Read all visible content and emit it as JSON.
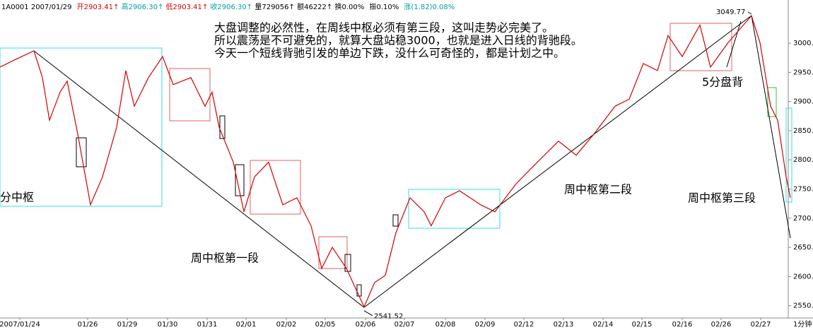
{
  "header": [
    "1A0001 2007/01/29",
    "开2903.41↑",
    "高2906.30↑",
    "低2903.41↑",
    "收2906.30↑",
    "量729056↑",
    "额46222↑",
    "换0.00%",
    "振0.10%",
    "涨(1.82)0.08%"
  ],
  "notes": [
    "大盘调整的必然性，在周线中枢必须有第三段，这叫走势必完美了。",
    "所以震荡是不可避免的，就算大盘站稳3000，也就是进入日线的背驰段。",
    "今天一个短线背驰引发的单边下跌，没什么可奇怪的，都是计划之中。"
  ],
  "labels": [
    "分中枢",
    "周中枢第一段",
    "周中枢第二段",
    "周中枢第三段",
    "5分盘背"
  ],
  "period": "1分钟",
  "chart_data": {
    "type": "line",
    "xlim": [
      0,
      1115
    ],
    "xticks": [
      {
        "value": 28,
        "label": "2007/01/24"
      },
      {
        "value": 124,
        "label": "01/26"
      },
      {
        "value": 180,
        "label": "01/29"
      },
      {
        "value": 237,
        "label": "01/30"
      },
      {
        "value": 293,
        "label": "01/31"
      },
      {
        "value": 348,
        "label": "02/01"
      },
      {
        "value": 405,
        "label": "02/02"
      },
      {
        "value": 460,
        "label": "02/05"
      },
      {
        "value": 517,
        "label": "02/06"
      },
      {
        "value": 572,
        "label": "02/07"
      },
      {
        "value": 630,
        "label": "02/08"
      },
      {
        "value": 686,
        "label": "02/09"
      },
      {
        "value": 741,
        "label": "02/12"
      },
      {
        "value": 797,
        "label": "02/13"
      },
      {
        "value": 853,
        "label": "02/14"
      },
      {
        "value": 908,
        "label": "02/15"
      },
      {
        "value": 965,
        "label": "02/16"
      },
      {
        "value": 1020,
        "label": "02/26"
      },
      {
        "value": 1076,
        "label": "02/27"
      }
    ],
    "ylim": [
      2529,
      3074
    ],
    "yticks": [
      {
        "value": 2550,
        "label": "2550.00"
      },
      {
        "value": 2600,
        "label": "2600.00"
      },
      {
        "value": 2650,
        "label": "2650.00"
      },
      {
        "value": 2700,
        "label": "2700.00"
      },
      {
        "value": 2750,
        "label": "2750.00"
      },
      {
        "value": 2800,
        "label": "2800.00"
      },
      {
        "value": 2850,
        "label": "2850.00"
      },
      {
        "value": 2900,
        "label": "2900.00"
      },
      {
        "value": 2950,
        "label": "2950.00"
      },
      {
        "value": 3000,
        "label": "3000.00"
      }
    ],
    "series": [
      {
        "color": "#d40000",
        "x": [
          0,
          20,
          48,
          60,
          70,
          85,
          95,
          110,
          128,
          145,
          165,
          178,
          190,
          210,
          230,
          245,
          270,
          290,
          300,
          310,
          330,
          345,
          360,
          380,
          400,
          420,
          440,
          455,
          470,
          490,
          515,
          530,
          545,
          560,
          580,
          600,
          610,
          630,
          650,
          680,
          700,
          730,
          760,
          790,
          815,
          840,
          870,
          890,
          910,
          930,
          945,
          965,
          990,
          1005,
          1030,
          1063,
          1075,
          1090,
          1100,
          1112,
          1118
        ],
        "values": [
          2959,
          2971,
          2987,
          2941,
          2868,
          2916,
          2935,
          2844,
          2723,
          2771,
          2856,
          2953,
          2892,
          2941,
          2977,
          2929,
          2941,
          2892,
          2916,
          2856,
          2796,
          2711,
          2771,
          2796,
          2723,
          2735,
          2687,
          2614,
          2650,
          2614,
          2548,
          2590,
          2602,
          2675,
          2735,
          2711,
          2687,
          2735,
          2747,
          2723,
          2711,
          2759,
          2796,
          2832,
          2808,
          2844,
          2892,
          2904,
          2965,
          2953,
          3013,
          2977,
          3031,
          2959,
          3001,
          3047,
          3001,
          2892,
          2868,
          2771,
          2735
        ]
      }
    ],
    "annotations": [
      {
        "x": 1063,
        "value": 3049.77
      },
      {
        "x": 515,
        "value": 2541.52
      }
    ]
  }
}
